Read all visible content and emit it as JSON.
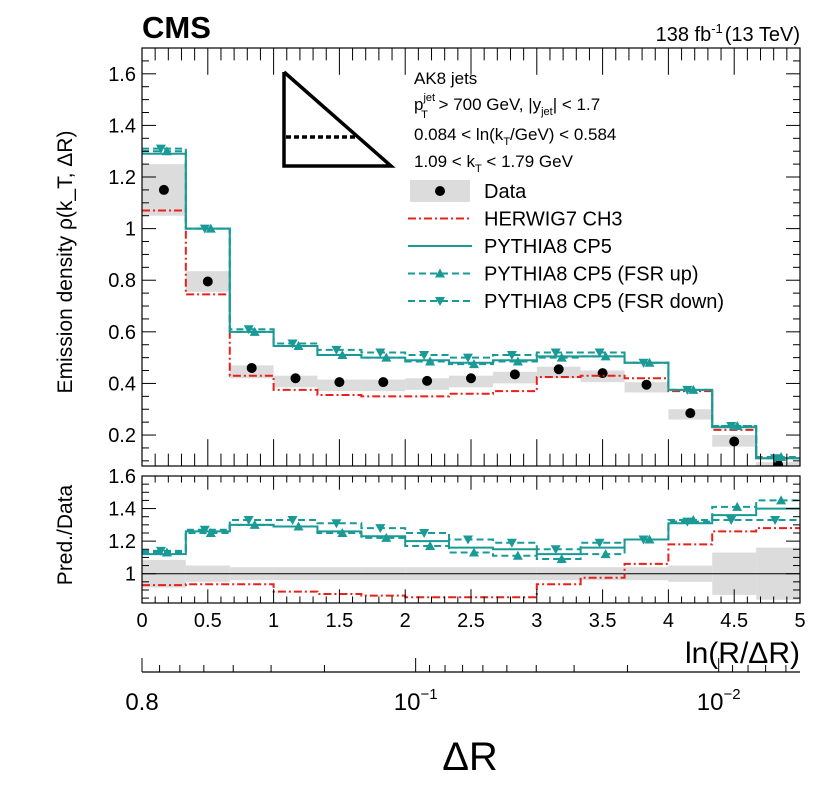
{
  "header": {
    "experiment": "CMS",
    "lumi": "138 fb",
    "lumi_exp": "-1",
    "energy": "(13 TeV)"
  },
  "colors": {
    "data": "#000000",
    "herwig": "#e8201a",
    "pythia": "#1a9a96",
    "band": "#dcdcdc"
  },
  "legend": {
    "line1": "AK8 jets",
    "sel_pt": "p",
    "sel_pt_sup": "jet",
    "sel_pt_sub": "T",
    "sel_pt_mid": " > 700 GeV, |y",
    "sel_y_sub": "jet",
    "sel_y_end": "| < 1.7",
    "kt_a": "0.084 < ln(k",
    "kt_a_sub": "T",
    "kt_a_end": "/GeV) < 0.584",
    "kt_b": "1.09 < k",
    "kt_b_sub": "T",
    "kt_b_end": " < 1.79 GeV",
    "entries": [
      "Data",
      "HERWIG7 CH3",
      "PYTHIA8 CP5",
      "PYTHIA8 CP5 (FSR up)",
      "PYTHIA8 CP5 (FSR down)"
    ]
  },
  "chart_data": [
    {
      "type": "line",
      "panel": "main",
      "ylabel": "Emission density ρ(k_T, ΔR)",
      "xlim": [
        0,
        5
      ],
      "ylim": [
        0.08,
        1.7
      ],
      "y_ticks": [
        "0.2",
        "0.4",
        "0.6",
        "0.8",
        "1",
        "1.2",
        "1.4",
        "1.6"
      ],
      "x_edges": [
        0,
        0.333,
        0.667,
        1.0,
        1.333,
        1.667,
        2.0,
        2.333,
        2.667,
        3.0,
        3.333,
        3.667,
        4.0,
        4.333,
        4.667,
        5.0
      ],
      "series": [
        {
          "name": "Data",
          "style": "points",
          "values": [
            1.15,
            0.795,
            0.46,
            0.42,
            0.405,
            0.405,
            0.41,
            0.42,
            0.435,
            0.455,
            0.44,
            0.395,
            0.285,
            0.175,
            0.085
          ],
          "band_lo": [
            1.05,
            0.755,
            0.42,
            0.385,
            0.37,
            0.37,
            0.375,
            0.385,
            0.4,
            0.42,
            0.405,
            0.365,
            0.26,
            0.155,
            0.075
          ],
          "band_hi": [
            1.25,
            0.835,
            0.47,
            0.43,
            0.415,
            0.415,
            0.42,
            0.43,
            0.445,
            0.465,
            0.45,
            0.405,
            0.3,
            0.2,
            0.095
          ]
        },
        {
          "name": "HERWIG7 CH3",
          "style": "dashdot",
          "values": [
            1.07,
            0.745,
            0.43,
            0.375,
            0.355,
            0.35,
            0.35,
            0.36,
            0.37,
            0.425,
            0.43,
            0.42,
            0.37,
            0.22,
            0.11
          ]
        },
        {
          "name": "PYTHIA8 CP5",
          "style": "solid",
          "values": [
            1.29,
            1.0,
            0.6,
            0.545,
            0.51,
            0.5,
            0.49,
            0.48,
            0.49,
            0.505,
            0.505,
            0.48,
            0.375,
            0.23,
            0.11
          ]
        },
        {
          "name": "PYTHIA8 CP5 (FSR up)",
          "style": "dashed-up",
          "values": [
            1.3,
            1.0,
            0.6,
            0.545,
            0.51,
            0.5,
            0.485,
            0.475,
            0.485,
            0.5,
            0.505,
            0.48,
            0.375,
            0.235,
            0.115
          ]
        },
        {
          "name": "PYTHIA8 CP5 (FSR down)",
          "style": "dashed-down",
          "values": [
            1.31,
            1.0,
            0.61,
            0.555,
            0.53,
            0.52,
            0.51,
            0.5,
            0.51,
            0.52,
            0.52,
            0.48,
            0.375,
            0.235,
            0.11
          ]
        }
      ]
    },
    {
      "type": "line",
      "panel": "ratio",
      "ylabel": "Pred./Data",
      "xlabel": "ln(R/ΔR)",
      "xlim": [
        0,
        5
      ],
      "ylim": [
        0.82,
        1.6
      ],
      "y_ticks": [
        "1",
        "1.2",
        "1.4",
        "1.6"
      ],
      "x_ticks": [
        "0",
        "0.5",
        "1",
        "1.5",
        "2",
        "2.5",
        "3",
        "3.5",
        "4",
        "4.5",
        "5"
      ],
      "series": [
        {
          "name": "Data uncertainty",
          "style": "band",
          "band_lo": [
            0.915,
            0.95,
            0.96,
            0.96,
            0.96,
            0.96,
            0.96,
            0.96,
            0.96,
            0.96,
            0.96,
            0.96,
            0.95,
            0.87,
            0.84
          ],
          "band_hi": [
            1.085,
            1.05,
            1.04,
            1.04,
            1.04,
            1.04,
            1.04,
            1.04,
            1.04,
            1.04,
            1.04,
            1.04,
            1.05,
            1.13,
            1.16
          ]
        },
        {
          "name": "HERWIG7 CH3",
          "style": "dashdot",
          "values": [
            0.93,
            0.935,
            0.935,
            0.89,
            0.875,
            0.865,
            0.855,
            0.855,
            0.855,
            0.935,
            0.975,
            1.06,
            1.18,
            1.26,
            1.28
          ]
        },
        {
          "name": "PYTHIA8 CP5",
          "style": "solid",
          "values": [
            1.12,
            1.26,
            1.3,
            1.29,
            1.26,
            1.23,
            1.2,
            1.16,
            1.15,
            1.12,
            1.16,
            1.21,
            1.31,
            1.36,
            1.4
          ]
        },
        {
          "name": "PYTHIA8 CP5 (FSR up)",
          "style": "dashed-up",
          "values": [
            1.13,
            1.25,
            1.3,
            1.29,
            1.25,
            1.22,
            1.17,
            1.13,
            1.11,
            1.09,
            1.12,
            1.21,
            1.33,
            1.41,
            1.45
          ]
        },
        {
          "name": "PYTHIA8 CP5 (FSR down)",
          "style": "dashed-down",
          "values": [
            1.14,
            1.27,
            1.33,
            1.33,
            1.31,
            1.28,
            1.25,
            1.21,
            1.19,
            1.15,
            1.19,
            1.21,
            1.32,
            1.33,
            1.33
          ]
        }
      ]
    },
    {
      "type": "line",
      "panel": "secondary-axis",
      "xlabel": "ΔR",
      "scale": "log-reversed",
      "tick_labels": [
        {
          "base": "0.8",
          "exp": ""
        },
        {
          "base": "10",
          "exp": "−1"
        },
        {
          "base": "10",
          "exp": "−2"
        }
      ]
    }
  ]
}
